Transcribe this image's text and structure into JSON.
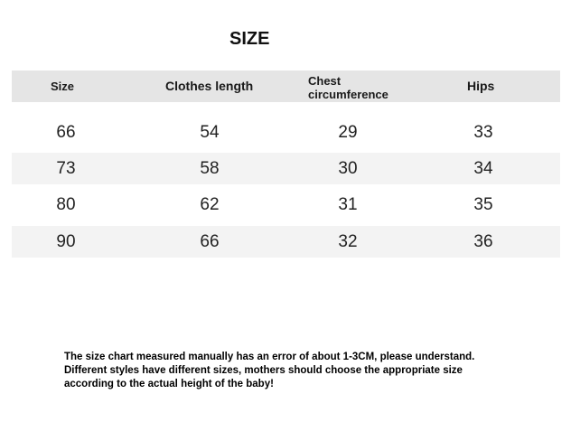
{
  "title": "SIZE",
  "table": {
    "headers": [
      "Size",
      "Clothes length",
      "Chest circumference",
      "Hips"
    ],
    "header_lines": {
      "chest_1": "Chest",
      "chest_2": "circumference"
    },
    "rows": [
      [
        "66",
        "54",
        "29",
        "33"
      ],
      [
        "73",
        "58",
        "30",
        "34"
      ],
      [
        "80",
        "62",
        "31",
        "35"
      ],
      [
        "90",
        "66",
        "32",
        "36"
      ]
    ]
  },
  "notes": [
    "The size chart measured manually has an error of about 1-3CM, please understand.",
    "Different styles have different sizes, mothers should choose the appropriate size",
    "according to the actual height of the baby!"
  ],
  "colors": {
    "header_bg": "#e5e5e5",
    "stripe_bg": "#f3f3f3"
  }
}
